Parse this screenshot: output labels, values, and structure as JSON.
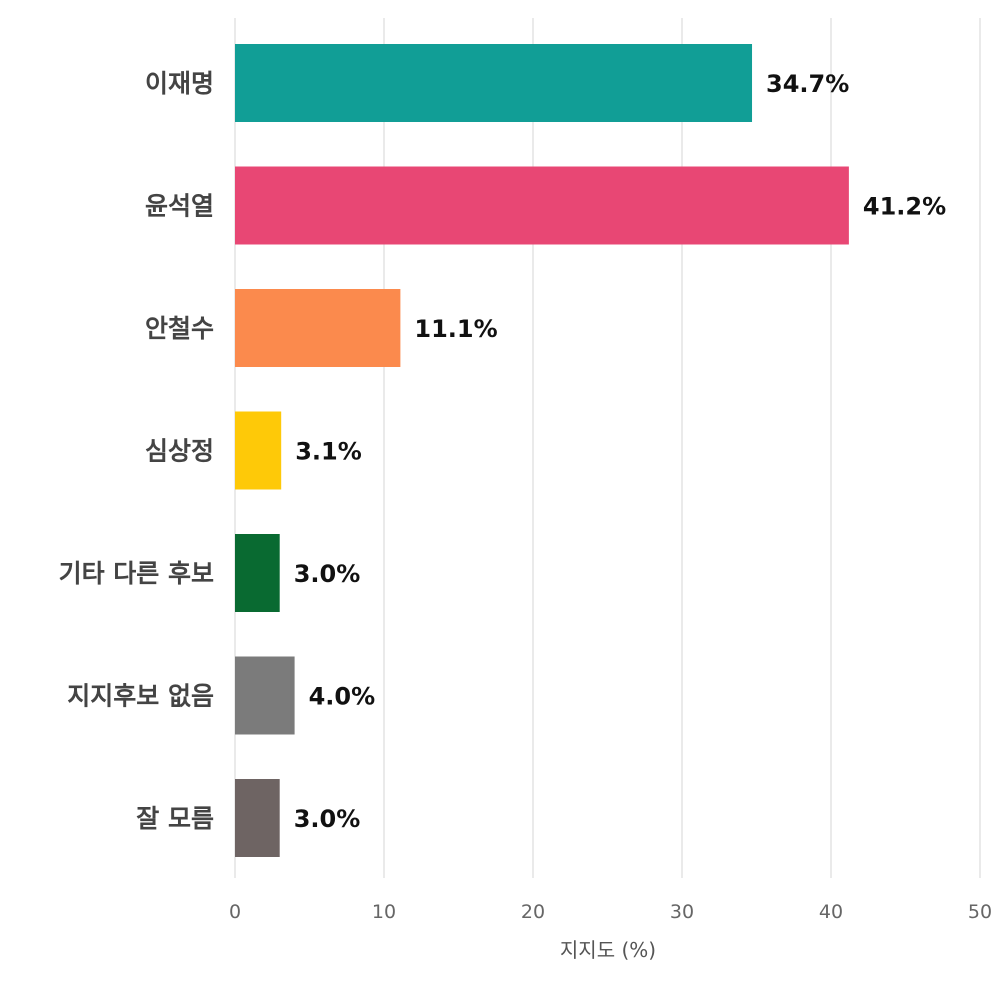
{
  "chart_data": {
    "type": "bar",
    "orientation": "horizontal",
    "categories": [
      "이재명",
      "윤석열",
      "안철수",
      "심상정",
      "기타 다른 후보",
      "지지후보 없음",
      "잘 모름"
    ],
    "values": [
      34.7,
      41.2,
      11.1,
      3.1,
      3.0,
      4.0,
      3.0
    ],
    "value_labels": [
      "34.7%",
      "41.2%",
      "11.1%",
      "3.1%",
      "3.0%",
      "4.0%",
      "3.0%"
    ],
    "colors": [
      "#119e96",
      "#e84774",
      "#fb8a4d",
      "#fec908",
      "#096a31",
      "#7b7b7b",
      "#6e6463"
    ],
    "xlabel": "지지도 (%)",
    "ylabel": "",
    "title": "",
    "xlim": [
      0,
      50
    ],
    "xticks": [
      "0",
      "10",
      "20",
      "30",
      "40",
      "50"
    ],
    "grid": "vertical"
  }
}
